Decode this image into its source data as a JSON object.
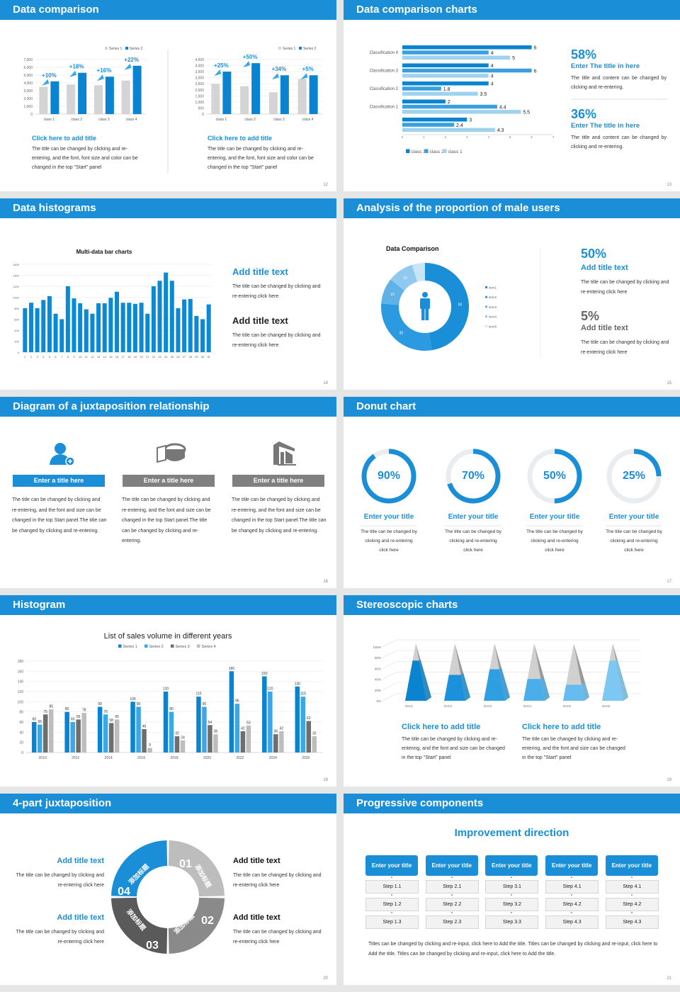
{
  "colors": {
    "header": "#1a8fd8",
    "accent": "#0a84d0",
    "light_gray": "#d4d4d4",
    "dark_gray": "#6e6e6e"
  },
  "slides": [
    {
      "title": "Data comparison",
      "page": "12",
      "captions": [
        {
          "title": "Click here to add title",
          "body": "The title can be changed by clicking and re-entering, and the font, font size and color can be changed in the top \"Start\" panel"
        },
        {
          "title": "Click here to add title",
          "body": "The title can be changed by clicking and re-entering, and the font, font size and color can be changed in the top \"Start\" panel"
        }
      ]
    },
    {
      "title": "Data comparison charts",
      "page": "13",
      "stats": [
        {
          "value": "58%",
          "title": "Enter The title in here",
          "body": "The title and content can be changed by clicking and re-entering."
        },
        {
          "value": "36%",
          "title": "Enter The title in here",
          "body": "The title and content can be changed by clicking and re-entering."
        }
      ]
    },
    {
      "title": "Data histograms",
      "page": "14",
      "items": [
        {
          "title": "Add title text",
          "body": "The title can be changed by clicking and re-entering click here"
        },
        {
          "title": "Add title text",
          "body": "The title can be changed by clicking and re-entering click here"
        }
      ]
    },
    {
      "title": "Analysis of the proportion of male users",
      "page": "15",
      "stats": [
        {
          "value": "50%",
          "title": "Add title text",
          "body": "The title can be changed by clicking and re-entering click here"
        },
        {
          "value": "5%",
          "title": "Add title text",
          "body": "The title can be changed by clicking and re-entering click here"
        }
      ]
    },
    {
      "title": "Diagram of a juxtaposition relationship",
      "page": "16",
      "columns": [
        {
          "icon": "user-add-icon",
          "label": "Enter a title here",
          "body": "The title can be changed by clicking and re-entering, and the font and size can be changed in the top Start panel.The title can be changed by clicking and re-entering."
        },
        {
          "icon": "pie-chart-icon",
          "label": "Enter a title here",
          "body": "The title can be changed by clicking and re-entering, and the font and size can be changed in the top Start panel.The title can be changed by clicking and re-entering."
        },
        {
          "icon": "building-chart-icon",
          "label": "Enter a title here",
          "body": "The title can be changed by clicking and re-entering, and the font and size can be changed in the top Start panel.The title can be changed by clicking and re-entering."
        }
      ]
    },
    {
      "title": "Donut chart",
      "page": "17",
      "rings": [
        {
          "value": 90,
          "label": "90%",
          "title": "Enter your title",
          "body": "The title can be changed by clicking and re-entering click here"
        },
        {
          "value": 70,
          "label": "70%",
          "title": "Enter your title",
          "body": "The title can be changed by clicking and re-entering click here"
        },
        {
          "value": 50,
          "label": "50%",
          "title": "Enter your title",
          "body": "The title can be changed by clicking and re-entering click here"
        },
        {
          "value": 25,
          "label": "25%",
          "title": "Enter your title",
          "body": "The title can be changed by clicking and re-entering click here"
        }
      ]
    },
    {
      "title": "Histogram",
      "page": "18"
    },
    {
      "title": "Stereoscopic charts",
      "page": "19",
      "captions": [
        {
          "title": "Click here to add title",
          "body": "The title can be changed by clicking and re-entering, and the font and size can be changed in the top \"Start\" panel"
        },
        {
          "title": "Click here to add title",
          "body": "The title can be changed by clicking and re-entering, and the font and size can be changed in the top \"Start\" panel"
        }
      ]
    },
    {
      "title": "4-part juxtaposition",
      "page": "20",
      "items": [
        {
          "title": "Add title text",
          "body": "The title can be changed by clicking and re-entering click here"
        },
        {
          "title": "Add title text",
          "body": "The title can be changed by clicking and re-entering click here"
        },
        {
          "title": "Add title text",
          "body": "The title can be changed by clicking and re-entering click here"
        },
        {
          "title": "Add title text",
          "body": "The title can be changed by clicking and re-entering click here"
        }
      ],
      "segments": [
        {
          "num": "01",
          "label": "添加标题",
          "color": "#bdbdbd"
        },
        {
          "num": "02",
          "label": "添加标题",
          "color": "#8a8a8a"
        },
        {
          "num": "03",
          "label": "添加标题",
          "color": "#5a5a5a"
        },
        {
          "num": "04",
          "label": "添加标题",
          "color": "#1a8fd8"
        }
      ]
    },
    {
      "title": "Progressive components",
      "page": "21",
      "heading": "Improvement direction",
      "columns": [
        {
          "title": "Enter your title",
          "steps": [
            "Step 1.1",
            "Step 1.2",
            "Step 1.3"
          ]
        },
        {
          "title": "Enter your title",
          "steps": [
            "Step 2.1",
            "Step 2.2",
            "Step 2.3"
          ]
        },
        {
          "title": "Enter your title",
          "steps": [
            "Step 3.1",
            "Step 3.2",
            "Step 3.3"
          ]
        },
        {
          "title": "Enter your title",
          "steps": [
            "Step 4.1",
            "Step 4.2",
            "Step 4.3"
          ]
        },
        {
          "title": "Enter your title",
          "steps": [
            "Step 4.1",
            "Step 4.2",
            "Step 4.3"
          ]
        }
      ],
      "footer": "Titles can be changed by clicking and re-input, click here to Add the title. Titles can be changed by clicking and re-input, click here to Add the title. Titles can be changed by clicking and re-input, click here to Add the title."
    }
  ],
  "chart_data": [
    {
      "type": "bar",
      "categories": [
        "class 1",
        "class 2",
        "class 3",
        "class 4"
      ],
      "series": [
        {
          "name": "Series 1",
          "values": [
            3500,
            3800,
            3700,
            4300
          ],
          "color": "#d4d4d4"
        },
        {
          "name": "Series 2",
          "values": [
            4200,
            5300,
            4800,
            6200
          ],
          "color": "#0a84d0"
        }
      ],
      "annotations": [
        "+10%",
        "+18%",
        "+16%",
        "+22%"
      ],
      "ylim": [
        0,
        7000
      ],
      "yticks": [
        "0",
        "1,000",
        "2,000",
        "3,000",
        "4,000",
        "5,000",
        "6,000",
        "7,000"
      ],
      "legend": "top-right",
      "grid": true
    },
    {
      "type": "bar",
      "categories": [
        "class 1",
        "class 2",
        "class 3",
        "class 4"
      ],
      "series": [
        {
          "name": "Series 1",
          "values": [
            2500,
            2300,
            1800,
            2900
          ],
          "color": "#d4d4d4"
        },
        {
          "name": "Series 2",
          "values": [
            3500,
            4200,
            3200,
            3200
          ],
          "color": "#0a84d0"
        }
      ],
      "annotations": [
        "+25%",
        "+50%",
        "+34%",
        "+5%"
      ],
      "ylim": [
        0,
        4500
      ],
      "yticks": [
        "0",
        "500",
        "1,000",
        "1,500",
        "2,000",
        "2,500",
        "3,000",
        "3,500",
        "4,000",
        "4,500"
      ],
      "legend": "top-right",
      "grid": true
    },
    {
      "type": "bar",
      "orientation": "horizontal",
      "categories": [
        "Classification 4",
        "Classification 3",
        "Classification 2",
        "Classification 1",
        ""
      ],
      "series": [
        {
          "name": "class 3",
          "values": [
            6,
            4,
            4,
            2,
            3
          ],
          "color": "#0a84d0"
        },
        {
          "name": "class 2",
          "values": [
            4,
            6,
            1.8,
            4.4,
            2.4
          ],
          "color": "#3a9fdc"
        },
        {
          "name": "class 1",
          "values": [
            5,
            4,
            3.5,
            5.5,
            4.3
          ],
          "color": "#9fd2ef"
        }
      ],
      "xlim": [
        0,
        7
      ],
      "xticks": [
        "0",
        "1",
        "2",
        "3",
        "4",
        "5",
        "6",
        "7"
      ],
      "legend": "bottom",
      "show_values": true
    },
    {
      "type": "bar",
      "title": "Multi-data bar charts",
      "categories": [
        "1",
        "2",
        "3",
        "4",
        "5",
        "6",
        "7",
        "8",
        "9",
        "10",
        "11",
        "12",
        "13",
        "14",
        "15",
        "16",
        "17",
        "18",
        "19",
        "20",
        "21",
        "22",
        "23",
        "24",
        "25",
        "26",
        "27",
        "28",
        "29",
        "30",
        "31"
      ],
      "values": [
        800,
        900,
        800,
        950,
        1020,
        700,
        600,
        1200,
        980,
        890,
        780,
        700,
        890,
        890,
        990,
        1100,
        900,
        900,
        880,
        900,
        700,
        1200,
        1300,
        1450,
        1300,
        800,
        960,
        970,
        660,
        600,
        870
      ],
      "color": "#0a8ad4",
      "ylim": [
        0,
        1600
      ],
      "yticks": [
        "0",
        "200",
        "400",
        "600",
        "800",
        "1000",
        "1200",
        "1400",
        "1600"
      ],
      "grid": true
    },
    {
      "type": "pie",
      "donut": true,
      "title": "Data Comparison",
      "labels": [
        "item1",
        "item2",
        "item3",
        "item4",
        "item5"
      ],
      "values": [
        50,
        30,
        10,
        10,
        5
      ],
      "data_labels": [
        "50",
        "30",
        "10",
        "10",
        ""
      ],
      "colors": [
        "#1a8fd8",
        "#2c9ae0",
        "#5eb2e8",
        "#8fc9ef",
        "#c8e5f7"
      ],
      "legend": "right"
    },
    {
      "type": "bar",
      "title": "List of sales volume in different years",
      "categories": [
        "2010",
        "2012",
        "2014",
        "2016",
        "2018",
        "2020",
        "2022",
        "2024",
        "2026"
      ],
      "series": [
        {
          "name": "Series 1",
          "values": [
            60,
            80,
            90,
            100,
            120,
            110,
            160,
            150,
            130
          ],
          "color": "#0a84d0"
        },
        {
          "name": "Series 2",
          "values": [
            55,
            60,
            75,
            90,
            80,
            90,
            96,
            120,
            110
          ],
          "color": "#3aa7e6"
        },
        {
          "name": "Series 3",
          "values": [
            75,
            65,
            58,
            46,
            32,
            54,
            42,
            36,
            62
          ],
          "color": "#6e6e6e"
        },
        {
          "name": "Series 4",
          "values": [
            85,
            78,
            65,
            9,
            24,
            36,
            53,
            42,
            32
          ],
          "color": "#bdbdbd"
        }
      ],
      "ylim": [
        0,
        180
      ],
      "yticks": [
        "0",
        "20",
        "40",
        "60",
        "80",
        "100",
        "120",
        "140",
        "160",
        "180"
      ],
      "legend": "top",
      "show_values": true,
      "grid": true
    },
    {
      "type": "bar",
      "style": "3d-pyramid",
      "categories": [
        "item1",
        "item2",
        "item3",
        "item4",
        "item5",
        "item6"
      ],
      "values": [
        70,
        45,
        55,
        38,
        28,
        70
      ],
      "unit": "%",
      "colors": [
        "#0a84d0",
        "#1a91da",
        "#2e9fe3",
        "#4aaeea",
        "#66bcef",
        "#7cc8f2"
      ],
      "ylim": [
        0,
        100
      ],
      "yticks": [
        "0%",
        "20%",
        "40%",
        "60%",
        "80%",
        "100%"
      ],
      "grid": true
    }
  ]
}
